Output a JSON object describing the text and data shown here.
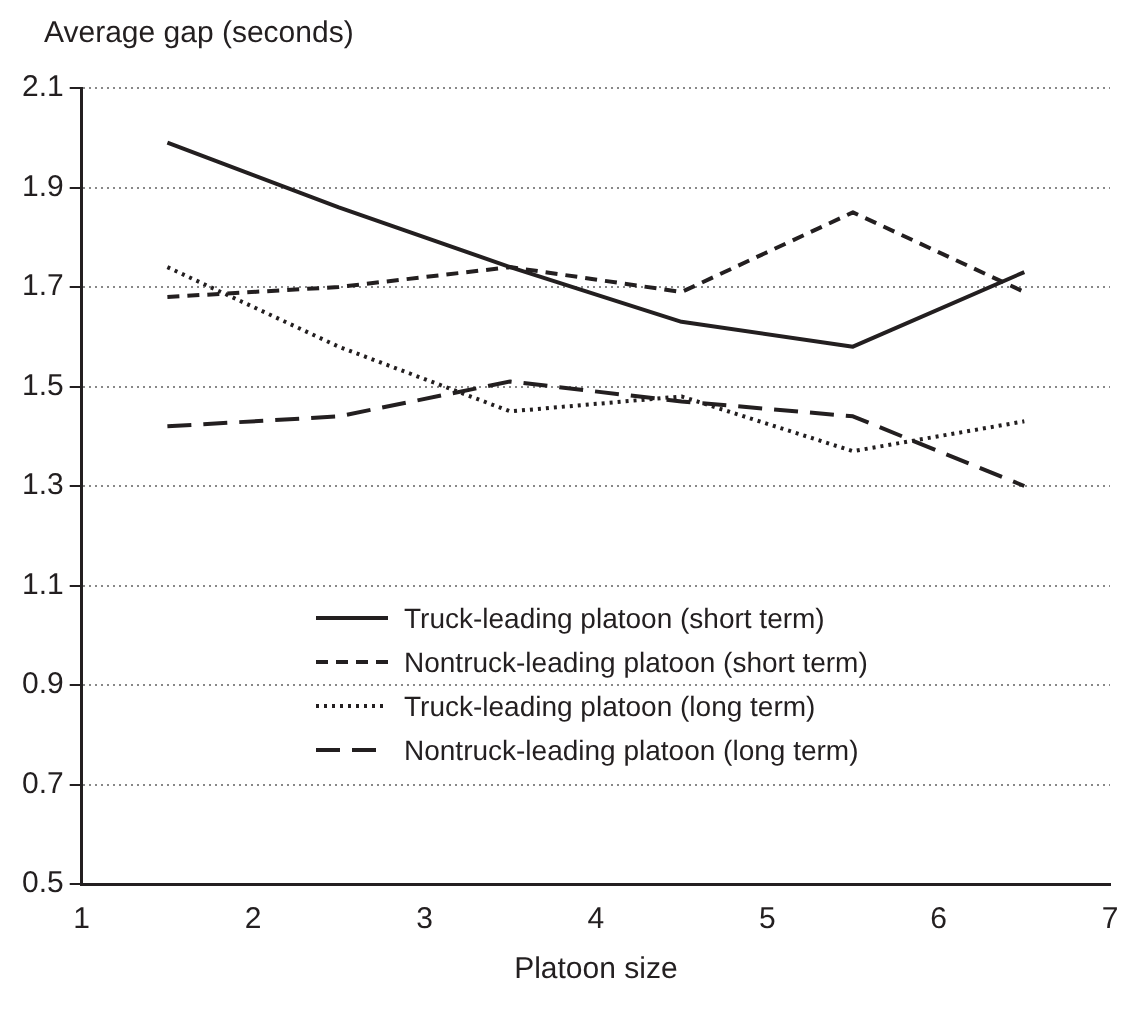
{
  "chart_data": {
    "type": "line",
    "ylabel": "Average gap (seconds)",
    "xlabel": "Platoon size",
    "x": [
      1.5,
      2.5,
      3.5,
      4.5,
      5.5,
      6.5
    ],
    "series": [
      {
        "name": "Truck-leading platoon (short term)",
        "color": "#231f20",
        "line_style": "solid",
        "values": [
          1.99,
          1.86,
          1.74,
          1.63,
          1.58,
          1.73
        ]
      },
      {
        "name": "Nontruck-leading platoon (short term)",
        "color": "#231f20",
        "line_style": "dashed",
        "values": [
          1.68,
          1.7,
          1.74,
          1.69,
          1.85,
          1.69
        ]
      },
      {
        "name": "Truck-leading platoon (long term)",
        "color": "#231f20",
        "line_style": "dotted",
        "values": [
          1.74,
          1.58,
          1.45,
          1.48,
          1.37,
          1.43
        ]
      },
      {
        "name": "Nontruck-leading platoon (long term)",
        "color": "#231f20",
        "line_style": "longdash",
        "values": [
          1.42,
          1.44,
          1.51,
          1.47,
          1.44,
          1.3
        ]
      }
    ],
    "xlim": [
      1,
      7
    ],
    "xticks": [
      1,
      2,
      3,
      4,
      5,
      6,
      7
    ],
    "ylim": [
      0.5,
      2.1
    ],
    "yticks": [
      0.5,
      0.7,
      0.9,
      1.1,
      1.3,
      1.5,
      1.7,
      1.9,
      2.1
    ],
    "grid": "y",
    "legend": "bottom",
    "marker": "none"
  }
}
